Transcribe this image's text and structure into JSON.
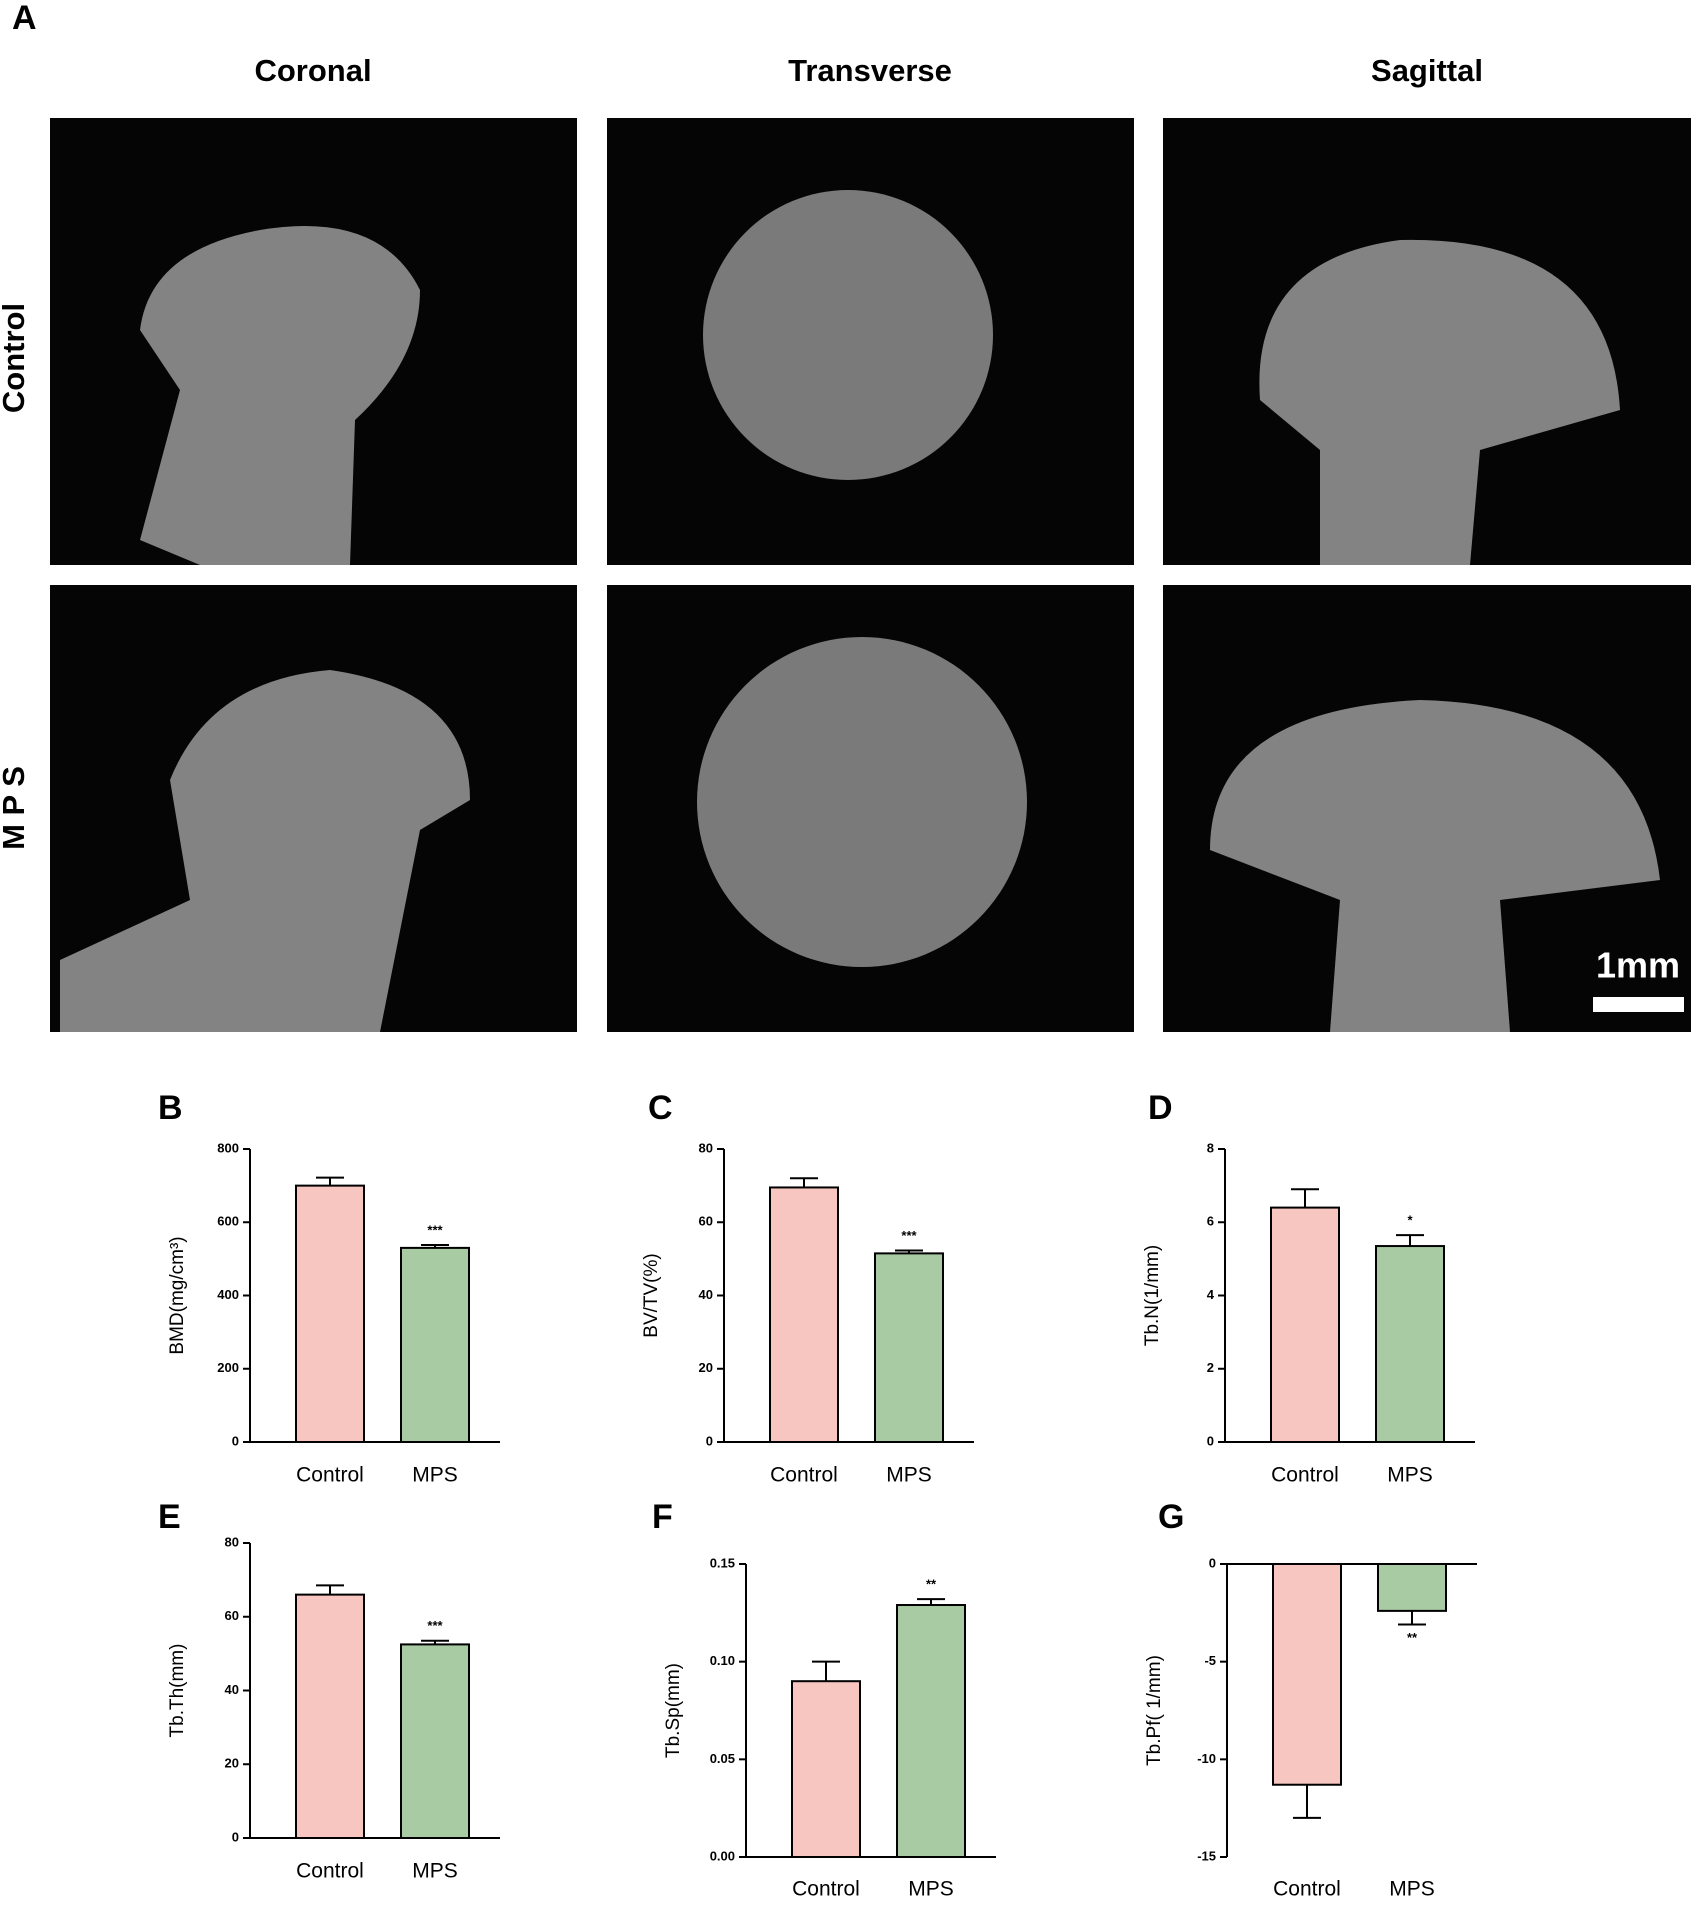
{
  "panel_a": {
    "label": "A",
    "columns": [
      "Coronal",
      "Transverse",
      "Sagittal"
    ],
    "rows": [
      "Control",
      "M P S"
    ],
    "scale_bar": "1mm"
  },
  "chart_data": [
    {
      "type": "bar",
      "panel": "B",
      "ylabel": "BMD(mg/cm³)",
      "categories": [
        "Control",
        "MPS"
      ],
      "values": [
        700,
        530
      ],
      "errors": [
        22,
        8
      ],
      "colors": [
        "#f8c6c0",
        "#a9cba4"
      ],
      "significance": [
        null,
        "***"
      ],
      "ylim": [
        0,
        800
      ],
      "yticks": [
        0,
        200,
        400,
        600,
        800
      ]
    },
    {
      "type": "bar",
      "panel": "C",
      "ylabel": "BV/TV(%)",
      "categories": [
        "Control",
        "MPS"
      ],
      "values": [
        69.5,
        51.5
      ],
      "errors": [
        2.5,
        0.8
      ],
      "colors": [
        "#f8c6c0",
        "#a9cba4"
      ],
      "significance": [
        null,
        "***"
      ],
      "ylim": [
        0,
        80
      ],
      "yticks": [
        0,
        20,
        40,
        60,
        80
      ]
    },
    {
      "type": "bar",
      "panel": "D",
      "ylabel": "Tb.N(1/mm)",
      "categories": [
        "Control",
        "MPS"
      ],
      "values": [
        6.4,
        5.35
      ],
      "errors": [
        0.5,
        0.3
      ],
      "colors": [
        "#f8c6c0",
        "#a9cba4"
      ],
      "significance": [
        null,
        "*"
      ],
      "ylim": [
        0,
        8
      ],
      "yticks": [
        0,
        2,
        4,
        6,
        8
      ]
    },
    {
      "type": "bar",
      "panel": "E",
      "ylabel": "Tb.Th(mm)",
      "categories": [
        "Control",
        "MPS"
      ],
      "values": [
        66,
        52.5
      ],
      "errors": [
        2.5,
        1
      ],
      "colors": [
        "#f8c6c0",
        "#a9cba4"
      ],
      "significance": [
        null,
        "***"
      ],
      "ylim": [
        0,
        80
      ],
      "yticks": [
        0,
        20,
        40,
        60,
        80
      ]
    },
    {
      "type": "bar",
      "panel": "F",
      "ylabel": "Tb.Sp(mm)",
      "categories": [
        "Control",
        "MPS"
      ],
      "values": [
        0.09,
        0.129
      ],
      "errors": [
        0.01,
        0.003
      ],
      "colors": [
        "#f8c6c0",
        "#a9cba4"
      ],
      "significance": [
        null,
        "**"
      ],
      "ylim": [
        0,
        0.15
      ],
      "yticks": [
        {
          "value": 0,
          "label": "0.00"
        },
        0.05,
        {
          "value": 0.1,
          "label": "0.10"
        },
        0.15
      ]
    },
    {
      "type": "bar",
      "panel": "G",
      "ylabel": "Tb.Pf( 1/mm)",
      "categories": [
        "Control",
        "MPS"
      ],
      "values": [
        -11.3,
        -2.4
      ],
      "errors": [
        1.7,
        0.7
      ],
      "colors": [
        "#f8c6c0",
        "#a9cba4"
      ],
      "significance": [
        null,
        "**"
      ],
      "ylim": [
        -15,
        0
      ],
      "yticks": [
        -15,
        -10,
        -5,
        0
      ]
    }
  ]
}
